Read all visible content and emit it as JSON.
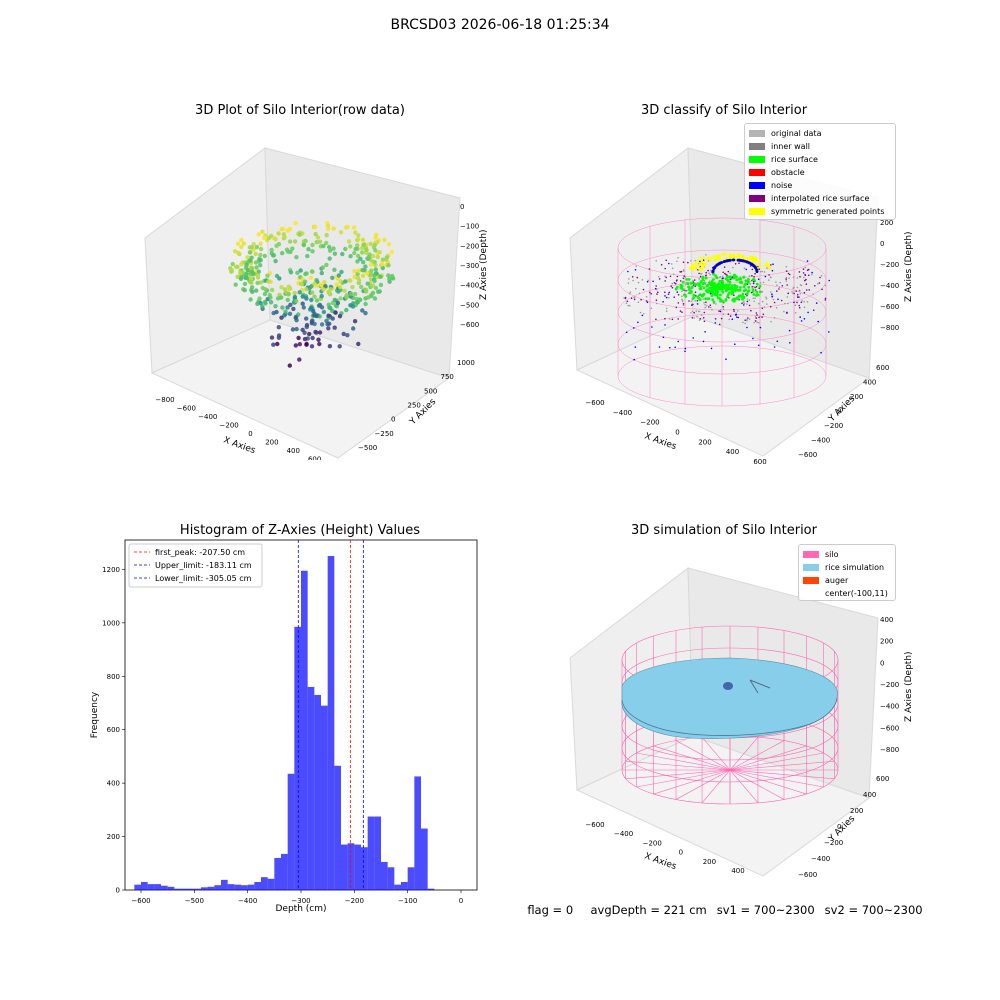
{
  "suptitle": "BRCSD03 2026-06-18 01:25:34",
  "panels": {
    "raw": {
      "title": "3D Plot of Silo Interior(row data)",
      "xlabel": "X Axies",
      "ylabel": "Y Axies",
      "zlabel": "Z Axies (Depth)",
      "xticks": [
        "−800",
        "−600",
        "−400",
        "−200",
        "0",
        "200",
        "400",
        "600",
        "800"
      ],
      "yticks": [
        "−500",
        "−250",
        "0",
        "250",
        "500",
        "750",
        "1000"
      ],
      "zticks": [
        "0",
        "−100",
        "−200",
        "−300",
        "−400",
        "−500",
        "−600"
      ]
    },
    "classify": {
      "title": "3D classify of Silo Interior",
      "xlabel": "X Axies",
      "ylabel": "Y Axies",
      "zlabel": "Z Axies (Depth)",
      "xticks": [
        "−600",
        "−400",
        "−200",
        "0",
        "200",
        "400",
        "600"
      ],
      "yticks": [
        "−600",
        "−400",
        "−200",
        "0",
        "200",
        "400",
        "600"
      ],
      "zticks": [
        "200",
        "0",
        "−200",
        "−400",
        "−600",
        "−800"
      ],
      "legend": [
        {
          "label": "original data",
          "color": "#b4b4b4"
        },
        {
          "label": "inner wall",
          "color": "#808080"
        },
        {
          "label": "rice surface",
          "color": "#00ff00"
        },
        {
          "label": "obstacle",
          "color": "#ff0000"
        },
        {
          "label": "noise",
          "color": "#0000ff"
        },
        {
          "label": "interpolated rice surface",
          "color": "#800080"
        },
        {
          "label": "symmetric generated points",
          "color": "#ffff00"
        }
      ]
    },
    "histogram": {
      "title": "Histogram of Z-Axies (Height) Values",
      "xlabel": "Depth (cm)",
      "ylabel": "Frequency",
      "legend": [
        {
          "label": "first_peak: -207.50 cm",
          "color": "#ff0000"
        },
        {
          "label": "Upper_limit: -183.11 cm",
          "color": "#0000ff"
        },
        {
          "label": "Lower_limit: -305.05 cm",
          "color": "#0000ff"
        }
      ]
    },
    "simulation": {
      "title": "3D simulation of Silo Interior",
      "xlabel": "X Axies",
      "ylabel": "Y Axies",
      "zlabel": "Z Axies (Depth)",
      "xticks": [
        "−600",
        "−400",
        "−200",
        "0",
        "200",
        "400"
      ],
      "yticks": [
        "−600",
        "−400",
        "−200",
        "0",
        "200",
        "400",
        "600"
      ],
      "zticks": [
        "400",
        "200",
        "0",
        "−200",
        "−400",
        "−600",
        "−800"
      ],
      "legend": [
        {
          "label": "silo",
          "color": "#ff69b4"
        },
        {
          "label": "rice simulation",
          "color": "#87ceeb"
        },
        {
          "label": "auger",
          "color": "#ff4500"
        },
        {
          "label": "center(-100,11)",
          "color": ""
        }
      ]
    }
  },
  "footer": {
    "flag": "flag = 0",
    "avg": "avgDepth = 221 cm",
    "sv1": "sv1 = 700~2300",
    "sv2": "sv2 = 700~2300"
  },
  "chart_data": [
    {
      "type": "bar",
      "title": "Histogram of Z-Axies (Height) Values",
      "xlabel": "Depth (cm)",
      "ylabel": "Frequency",
      "xlim": [
        -630,
        30
      ],
      "ylim": [
        0,
        1310
      ],
      "xticks": [
        -600,
        -500,
        -400,
        -300,
        -200,
        -100,
        0
      ],
      "yticks": [
        0,
        200,
        400,
        600,
        800,
        1000,
        1200
      ],
      "bin_width": 12.5,
      "bin_start": -612.5,
      "values": [
        20,
        30,
        22,
        22,
        16,
        12,
        5,
        5,
        5,
        5,
        10,
        12,
        18,
        38,
        22,
        20,
        18,
        20,
        30,
        48,
        42,
        120,
        135,
        435,
        985,
        1195,
        760,
        730,
        690,
        1250,
        465,
        170,
        175,
        170,
        160,
        275,
        275,
        105,
        85,
        20,
        30,
        85,
        425,
        230,
        5
      ],
      "color": "#0000ff",
      "vlines": [
        {
          "x": -207.5,
          "label": "first_peak: -207.50 cm",
          "color": "#ff0000"
        },
        {
          "x": -183.11,
          "label": "Upper_limit: -183.11 cm",
          "color": "#0000ff"
        },
        {
          "x": -305.05,
          "label": "Lower_limit: -305.05 cm",
          "color": "#0000ff"
        }
      ],
      "legend_position": "upper left",
      "grid": false
    }
  ]
}
